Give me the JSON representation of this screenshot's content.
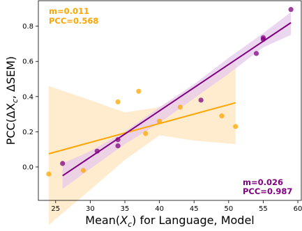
{
  "chart_data": {
    "type": "scatter",
    "xlabel_prefix": "Mean(",
    "xlabel_var": "X",
    "xlabel_sub": "c",
    "xlabel_suffix": ") for Language, Model",
    "ylabel_prefix": "PCC(ΔX",
    "ylabel_sub": "c",
    "ylabel_suffix": ", ΔSEM)",
    "xlim": [
      22.5,
      60.5
    ],
    "ylim": [
      -0.19,
      0.945
    ],
    "xticks": [
      25,
      30,
      35,
      40,
      45,
      50,
      55,
      60
    ],
    "yticks": [
      0.0,
      0.2,
      0.4,
      0.6,
      0.8
    ],
    "grid": false,
    "series": [
      {
        "color": "#ffa500",
        "points": [
          {
            "x": 24,
            "y": -0.04
          },
          {
            "x": 29,
            "y": -0.02
          },
          {
            "x": 34,
            "y": 0.37
          },
          {
            "x": 37,
            "y": 0.43
          },
          {
            "x": 38,
            "y": 0.19
          },
          {
            "x": 40,
            "y": 0.26
          },
          {
            "x": 43,
            "y": 0.34
          },
          {
            "x": 49,
            "y": 0.29
          },
          {
            "x": 51,
            "y": 0.23
          }
        ],
        "fit": {
          "x0": 24,
          "y0": 0.075,
          "x1": 51,
          "y1": 0.365
        },
        "band": {
          "upper": [
            {
              "x": 24,
              "y": 0.46
            },
            {
              "x": 30,
              "y": 0.38
            },
            {
              "x": 35,
              "y": 0.31
            },
            {
              "x": 40,
              "y": 0.34
            },
            {
              "x": 45,
              "y": 0.45
            },
            {
              "x": 51,
              "y": 0.6
            }
          ],
          "lower": [
            {
              "x": 51,
              "y": 0.13
            },
            {
              "x": 45,
              "y": 0.15
            },
            {
              "x": 40,
              "y": 0.18
            },
            {
              "x": 35,
              "y": 0.04
            },
            {
              "x": 30,
              "y": -0.13
            },
            {
              "x": 24,
              "y": -0.33
            }
          ]
        },
        "annotation": [
          "m=0.011",
          "PCC=0.568"
        ]
      },
      {
        "color": "#800080",
        "points": [
          {
            "x": 26,
            "y": 0.02
          },
          {
            "x": 31,
            "y": 0.09
          },
          {
            "x": 34,
            "y": 0.12
          },
          {
            "x": 34,
            "y": 0.155
          },
          {
            "x": 46,
            "y": 0.38
          },
          {
            "x": 54,
            "y": 0.645
          },
          {
            "x": 55,
            "y": 0.725
          },
          {
            "x": 55,
            "y": 0.735
          },
          {
            "x": 59,
            "y": 0.895
          }
        ],
        "fit": {
          "x0": 26,
          "y0": -0.05,
          "x1": 59,
          "y1": 0.82
        },
        "band": {
          "upper": [
            {
              "x": 26,
              "y": 0.02
            },
            {
              "x": 30,
              "y": 0.09
            },
            {
              "x": 35,
              "y": 0.2
            },
            {
              "x": 40,
              "y": 0.34
            },
            {
              "x": 45,
              "y": 0.47
            },
            {
              "x": 50,
              "y": 0.62
            },
            {
              "x": 55,
              "y": 0.76
            },
            {
              "x": 59,
              "y": 0.88
            }
          ],
          "lower": [
            {
              "x": 59,
              "y": 0.75
            },
            {
              "x": 55,
              "y": 0.68
            },
            {
              "x": 50,
              "y": 0.53
            },
            {
              "x": 45,
              "y": 0.39
            },
            {
              "x": 40,
              "y": 0.25
            },
            {
              "x": 35,
              "y": 0.13
            },
            {
              "x": 30,
              "y": -0.01
            },
            {
              "x": 26,
              "y": -0.125
            }
          ]
        },
        "annotation": [
          "m=0.026",
          "PCC=0.987"
        ]
      }
    ]
  }
}
